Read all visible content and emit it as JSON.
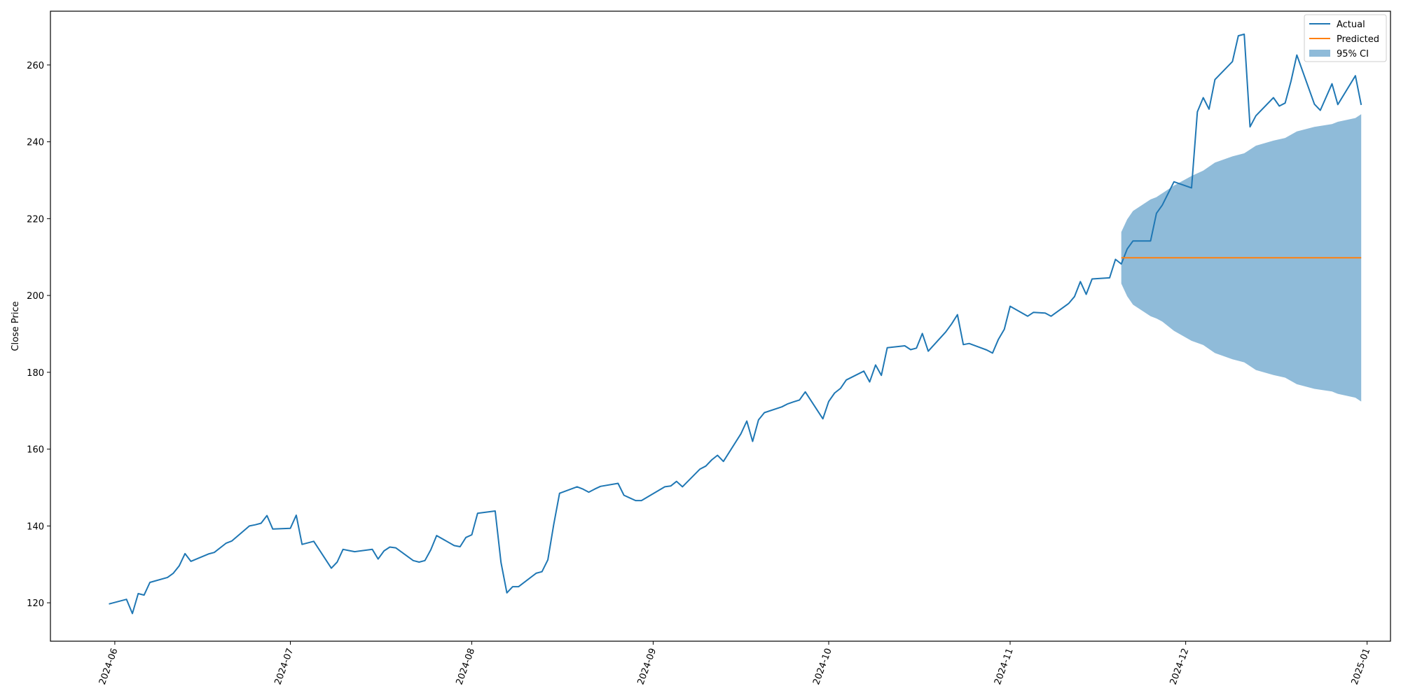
{
  "chart_data": {
    "type": "line",
    "title": "",
    "xlabel": "",
    "ylabel": "Close Price",
    "x_type": "date",
    "xlim": [
      "2024-05-21",
      "2025-01-05"
    ],
    "ylim": [
      110,
      274
    ],
    "x_ticks": [
      "2024-06",
      "2024-07",
      "2024-08",
      "2024-09",
      "2024-10",
      "2024-11",
      "2024-12",
      "2025-01"
    ],
    "y_ticks": [
      120,
      140,
      160,
      180,
      200,
      220,
      240,
      260
    ],
    "grid": false,
    "legend_position": "top-right",
    "series": [
      {
        "name": "Actual",
        "kind": "line",
        "color": "#1f77b4",
        "points": [
          [
            "2024-05-31",
            119.7
          ],
          [
            "2024-06-03",
            120.9
          ],
          [
            "2024-06-04",
            117.2
          ],
          [
            "2024-06-05",
            122.4
          ],
          [
            "2024-06-06",
            122.0
          ],
          [
            "2024-06-07",
            125.3
          ],
          [
            "2024-06-10",
            126.6
          ],
          [
            "2024-06-11",
            127.7
          ],
          [
            "2024-06-12",
            129.6
          ],
          [
            "2024-06-13",
            132.8
          ],
          [
            "2024-06-14",
            130.8
          ],
          [
            "2024-06-17",
            132.7
          ],
          [
            "2024-06-18",
            133.1
          ],
          [
            "2024-06-20",
            135.5
          ],
          [
            "2024-06-21",
            136.1
          ],
          [
            "2024-06-24",
            140.0
          ],
          [
            "2024-06-25",
            140.3
          ],
          [
            "2024-06-26",
            140.7
          ],
          [
            "2024-06-27",
            142.7
          ],
          [
            "2024-06-28",
            139.2
          ],
          [
            "2024-07-01",
            139.4
          ],
          [
            "2024-07-02",
            142.8
          ],
          [
            "2024-07-03",
            135.2
          ],
          [
            "2024-07-05",
            136.0
          ],
          [
            "2024-07-08",
            129.0
          ],
          [
            "2024-07-09",
            130.6
          ],
          [
            "2024-07-10",
            133.9
          ],
          [
            "2024-07-11",
            133.6
          ],
          [
            "2024-07-12",
            133.3
          ],
          [
            "2024-07-15",
            133.9
          ],
          [
            "2024-07-16",
            131.4
          ],
          [
            "2024-07-17",
            133.5
          ],
          [
            "2024-07-18",
            134.5
          ],
          [
            "2024-07-19",
            134.3
          ],
          [
            "2024-07-22",
            131.0
          ],
          [
            "2024-07-23",
            130.6
          ],
          [
            "2024-07-24",
            131.0
          ],
          [
            "2024-07-25",
            133.8
          ],
          [
            "2024-07-26",
            137.5
          ],
          [
            "2024-07-29",
            134.9
          ],
          [
            "2024-07-30",
            134.6
          ],
          [
            "2024-07-31",
            137.0
          ],
          [
            "2024-08-01",
            137.7
          ],
          [
            "2024-08-02",
            143.3
          ],
          [
            "2024-08-05",
            143.9
          ],
          [
            "2024-08-06",
            130.5
          ],
          [
            "2024-08-07",
            122.6
          ],
          [
            "2024-08-08",
            124.2
          ],
          [
            "2024-08-09",
            124.2
          ],
          [
            "2024-08-12",
            127.7
          ],
          [
            "2024-08-13",
            128.1
          ],
          [
            "2024-08-14",
            131.2
          ],
          [
            "2024-08-15",
            140.3
          ],
          [
            "2024-08-16",
            148.5
          ],
          [
            "2024-08-19",
            150.2
          ],
          [
            "2024-08-20",
            149.6
          ],
          [
            "2024-08-21",
            148.8
          ],
          [
            "2024-08-22",
            149.6
          ],
          [
            "2024-08-23",
            150.3
          ],
          [
            "2024-08-26",
            151.1
          ],
          [
            "2024-08-27",
            148.0
          ],
          [
            "2024-08-28",
            147.3
          ],
          [
            "2024-08-29",
            146.6
          ],
          [
            "2024-08-30",
            146.6
          ],
          [
            "2024-09-03",
            150.2
          ],
          [
            "2024-09-04",
            150.4
          ],
          [
            "2024-09-05",
            151.6
          ],
          [
            "2024-09-06",
            150.2
          ],
          [
            "2024-09-09",
            154.8
          ],
          [
            "2024-09-10",
            155.6
          ],
          [
            "2024-09-11",
            157.2
          ],
          [
            "2024-09-12",
            158.4
          ],
          [
            "2024-09-13",
            156.8
          ],
          [
            "2024-09-16",
            164.0
          ],
          [
            "2024-09-17",
            167.3
          ],
          [
            "2024-09-18",
            162.0
          ],
          [
            "2024-09-19",
            167.6
          ],
          [
            "2024-09-20",
            169.5
          ],
          [
            "2024-09-23",
            171.0
          ],
          [
            "2024-09-24",
            171.8
          ],
          [
            "2024-09-25",
            172.3
          ],
          [
            "2024-09-26",
            172.8
          ],
          [
            "2024-09-27",
            174.9
          ],
          [
            "2024-09-30",
            167.9
          ],
          [
            "2024-10-01",
            172.4
          ],
          [
            "2024-10-02",
            174.6
          ],
          [
            "2024-10-03",
            175.8
          ],
          [
            "2024-10-04",
            178.0
          ],
          [
            "2024-10-07",
            180.3
          ],
          [
            "2024-10-08",
            177.5
          ],
          [
            "2024-10-09",
            181.9
          ],
          [
            "2024-10-10",
            179.2
          ],
          [
            "2024-10-11",
            186.4
          ],
          [
            "2024-10-14",
            186.9
          ],
          [
            "2024-10-15",
            185.9
          ],
          [
            "2024-10-16",
            186.3
          ],
          [
            "2024-10-17",
            190.1
          ],
          [
            "2024-10-18",
            185.5
          ],
          [
            "2024-10-21",
            190.5
          ],
          [
            "2024-10-22",
            192.6
          ],
          [
            "2024-10-23",
            195.0
          ],
          [
            "2024-10-24",
            187.2
          ],
          [
            "2024-10-25",
            187.5
          ],
          [
            "2024-10-28",
            185.8
          ],
          [
            "2024-10-29",
            185.0
          ],
          [
            "2024-10-30",
            188.6
          ],
          [
            "2024-10-31",
            191.2
          ],
          [
            "2024-11-01",
            197.2
          ],
          [
            "2024-11-04",
            194.6
          ],
          [
            "2024-11-05",
            195.6
          ],
          [
            "2024-11-06",
            195.5
          ],
          [
            "2024-11-07",
            195.4
          ],
          [
            "2024-11-08",
            194.6
          ],
          [
            "2024-11-11",
            197.9
          ],
          [
            "2024-11-12",
            199.7
          ],
          [
            "2024-11-13",
            203.6
          ],
          [
            "2024-11-14",
            200.3
          ],
          [
            "2024-11-15",
            204.3
          ],
          [
            "2024-11-18",
            204.6
          ],
          [
            "2024-11-19",
            209.4
          ],
          [
            "2024-11-20",
            208.2
          ],
          [
            "2024-11-21",
            212.1
          ],
          [
            "2024-11-22",
            214.2
          ],
          [
            "2024-11-25",
            214.2
          ],
          [
            "2024-11-26",
            221.4
          ],
          [
            "2024-11-27",
            223.5
          ],
          [
            "2024-11-29",
            229.6
          ],
          [
            "2024-12-02",
            228.0
          ],
          [
            "2024-12-03",
            247.8
          ],
          [
            "2024-12-04",
            251.5
          ],
          [
            "2024-12-05",
            248.5
          ],
          [
            "2024-12-06",
            256.2
          ],
          [
            "2024-12-09",
            260.9
          ],
          [
            "2024-12-10",
            267.6
          ],
          [
            "2024-12-11",
            268.0
          ],
          [
            "2024-12-12",
            243.9
          ],
          [
            "2024-12-13",
            246.8
          ],
          [
            "2024-12-16",
            251.5
          ],
          [
            "2024-12-17",
            249.3
          ],
          [
            "2024-12-18",
            250.1
          ],
          [
            "2024-12-19",
            255.8
          ],
          [
            "2024-12-20",
            262.6
          ],
          [
            "2024-12-23",
            249.8
          ],
          [
            "2024-12-24",
            248.2
          ],
          [
            "2024-12-26",
            255.1
          ],
          [
            "2024-12-27",
            249.7
          ],
          [
            "2024-12-30",
            257.2
          ],
          [
            "2024-12-31",
            249.6
          ]
        ]
      },
      {
        "name": "Predicted",
        "kind": "line",
        "color": "#ff7f0e",
        "points": [
          [
            "2024-11-20",
            209.8
          ],
          [
            "2024-12-31",
            209.8
          ]
        ]
      },
      {
        "name": "95% CI",
        "kind": "band",
        "color": "#1f77b4",
        "opacity": 0.5,
        "upper": [
          [
            "2024-11-20",
            216.5
          ],
          [
            "2024-11-21",
            219.8
          ],
          [
            "2024-11-22",
            222.0
          ],
          [
            "2024-11-25",
            225.0
          ],
          [
            "2024-11-26",
            225.6
          ],
          [
            "2024-11-27",
            226.6
          ],
          [
            "2024-11-29",
            228.6
          ],
          [
            "2024-12-02",
            231.1
          ],
          [
            "2024-12-04",
            232.5
          ],
          [
            "2024-12-06",
            234.6
          ],
          [
            "2024-12-09",
            236.2
          ],
          [
            "2024-12-11",
            237.0
          ],
          [
            "2024-12-13",
            239.0
          ],
          [
            "2024-12-16",
            240.3
          ],
          [
            "2024-12-18",
            241.0
          ],
          [
            "2024-12-20",
            242.7
          ],
          [
            "2024-12-23",
            243.9
          ],
          [
            "2024-12-26",
            244.6
          ],
          [
            "2024-12-27",
            245.2
          ],
          [
            "2024-12-30",
            246.2
          ],
          [
            "2024-12-31",
            247.2
          ]
        ],
        "lower": [
          [
            "2024-11-20",
            203.1
          ],
          [
            "2024-11-21",
            199.8
          ],
          [
            "2024-11-22",
            197.6
          ],
          [
            "2024-11-25",
            194.6
          ],
          [
            "2024-11-26",
            194.0
          ],
          [
            "2024-11-27",
            193.2
          ],
          [
            "2024-11-29",
            190.8
          ],
          [
            "2024-12-02",
            188.2
          ],
          [
            "2024-12-04",
            187.1
          ],
          [
            "2024-12-06",
            185.0
          ],
          [
            "2024-12-09",
            183.4
          ],
          [
            "2024-12-11",
            182.6
          ],
          [
            "2024-12-13",
            180.6
          ],
          [
            "2024-12-16",
            179.3
          ],
          [
            "2024-12-18",
            178.6
          ],
          [
            "2024-12-20",
            176.9
          ],
          [
            "2024-12-23",
            175.7
          ],
          [
            "2024-12-26",
            175.0
          ],
          [
            "2024-12-27",
            174.4
          ],
          [
            "2024-12-30",
            173.4
          ],
          [
            "2024-12-31",
            172.4
          ]
        ]
      }
    ]
  }
}
